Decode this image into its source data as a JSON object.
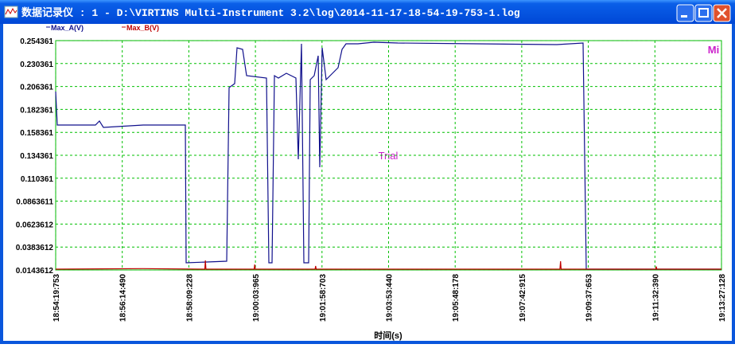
{
  "window": {
    "title": "数据记录仪 : 1 - D:\\VIRTINS Multi-Instrument 3.2\\log\\2014-11-17-18-54-19-753-1.log"
  },
  "chart_data": {
    "type": "line",
    "xlabel": "时间(s)",
    "watermark": "Trial",
    "corner_text": "Mi",
    "grid": true,
    "xlim": [
      0,
      1147.375
    ],
    "xticks": [
      {
        "value": 0,
        "label": "18:54:19:753"
      },
      {
        "value": 114.737,
        "label": "18:56:14:490"
      },
      {
        "value": 229.475,
        "label": "18:58:09:228"
      },
      {
        "value": 344.212,
        "label": "19:00:03:965"
      },
      {
        "value": 458.95,
        "label": "19:01:58:703"
      },
      {
        "value": 573.687,
        "label": "19:03:53:440"
      },
      {
        "value": 688.425,
        "label": "19:05:48:178"
      },
      {
        "value": 803.162,
        "label": "19:07:42:915"
      },
      {
        "value": 917.9,
        "label": "19:09:37:653"
      },
      {
        "value": 1032.637,
        "label": "19:11:32:390"
      },
      {
        "value": 1147.375,
        "label": "19:13:27:128"
      }
    ],
    "ylim": [
      0.0143612,
      0.254361
    ],
    "yticks": [
      0.254361,
      0.230361,
      0.206361,
      0.182361,
      0.158361,
      0.134361,
      0.110361,
      0.0863611,
      0.0623612,
      0.0383612,
      0.0143612
    ],
    "series": [
      {
        "name": "Max_A(V)",
        "color": "#10108c",
        "x": [
          0,
          2.7,
          68.5,
          75.4,
          82.2,
          150.8,
          223.4,
          224.8,
          294.7,
          298.8,
          308.4,
          312.5,
          322.1,
          329.0,
          363.3,
          367.4,
          372.9,
          377.0,
          383.8,
          397.5,
          414.0,
          418.1,
          423.6,
          427.7,
          435.9,
          438.7,
          445.5,
          452.4,
          455.1,
          459.2,
          466.1,
          477.0,
          486.6,
          493.5,
          500.4,
          520.9,
          548.3,
          589.5,
          726.5,
          863.6,
          908.9,
          914.3,
          1147.4
        ],
        "values": [
          0.201,
          0.166,
          0.166,
          0.1702,
          0.1635,
          0.166,
          0.166,
          0.0219,
          0.0235,
          0.2052,
          0.2094,
          0.2469,
          0.2452,
          0.2177,
          0.2152,
          0.0219,
          0.0219,
          0.2177,
          0.2152,
          0.2202,
          0.2152,
          0.1302,
          0.251,
          0.0219,
          0.0219,
          0.2135,
          0.2177,
          0.2385,
          0.1219,
          0.2469,
          0.2135,
          0.2202,
          0.226,
          0.2452,
          0.251,
          0.251,
          0.2527,
          0.2519,
          0.251,
          0.2502,
          0.2519,
          0.0152,
          0.0152
        ]
      },
      {
        "name": "Max_B(V)",
        "color": "#c00000",
        "x": [
          0,
          150,
          257,
          258,
          259,
          342,
          343,
          344,
          447,
          448,
          449,
          869,
          870,
          871,
          1034,
          1035,
          1036,
          1147.4
        ],
        "values": [
          0.0152,
          0.0158,
          0.0152,
          0.0243,
          0.0152,
          0.0152,
          0.02,
          0.0152,
          0.0152,
          0.0185,
          0.0152,
          0.0152,
          0.0235,
          0.0152,
          0.0152,
          0.018,
          0.0152,
          0.0152
        ]
      }
    ]
  }
}
